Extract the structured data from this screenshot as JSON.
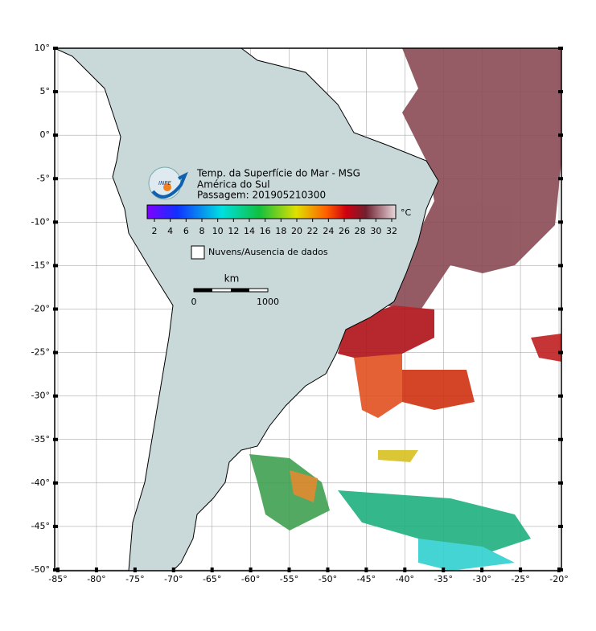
{
  "map": {
    "title": "Temp. da Superfície do Mar - MSG",
    "region": "América do Sul",
    "pass": "Passagem: 201905210300",
    "logo": "INPE",
    "colorbar": {
      "unit": "°C",
      "ticks": [
        2,
        4,
        6,
        8,
        10,
        12,
        14,
        16,
        18,
        20,
        22,
        24,
        26,
        28,
        30,
        32
      ]
    },
    "legend": "Nuvens/Ausencia de dados",
    "scale": {
      "unit": "km",
      "start": "0",
      "end": "1000"
    },
    "lon_labels": [
      "-85°",
      "-80°",
      "-75°",
      "-70°",
      "-65°",
      "-60°",
      "-55°",
      "-50°",
      "-45°",
      "-40°",
      "-35°",
      "-30°",
      "-25°",
      "-20°"
    ],
    "lat_labels": [
      "10°",
      "5°",
      "0°",
      "-5°",
      "-10°",
      "-15°",
      "-20°",
      "-25°",
      "-30°",
      "-35°",
      "-40°",
      "-45°",
      "-50°"
    ]
  }
}
